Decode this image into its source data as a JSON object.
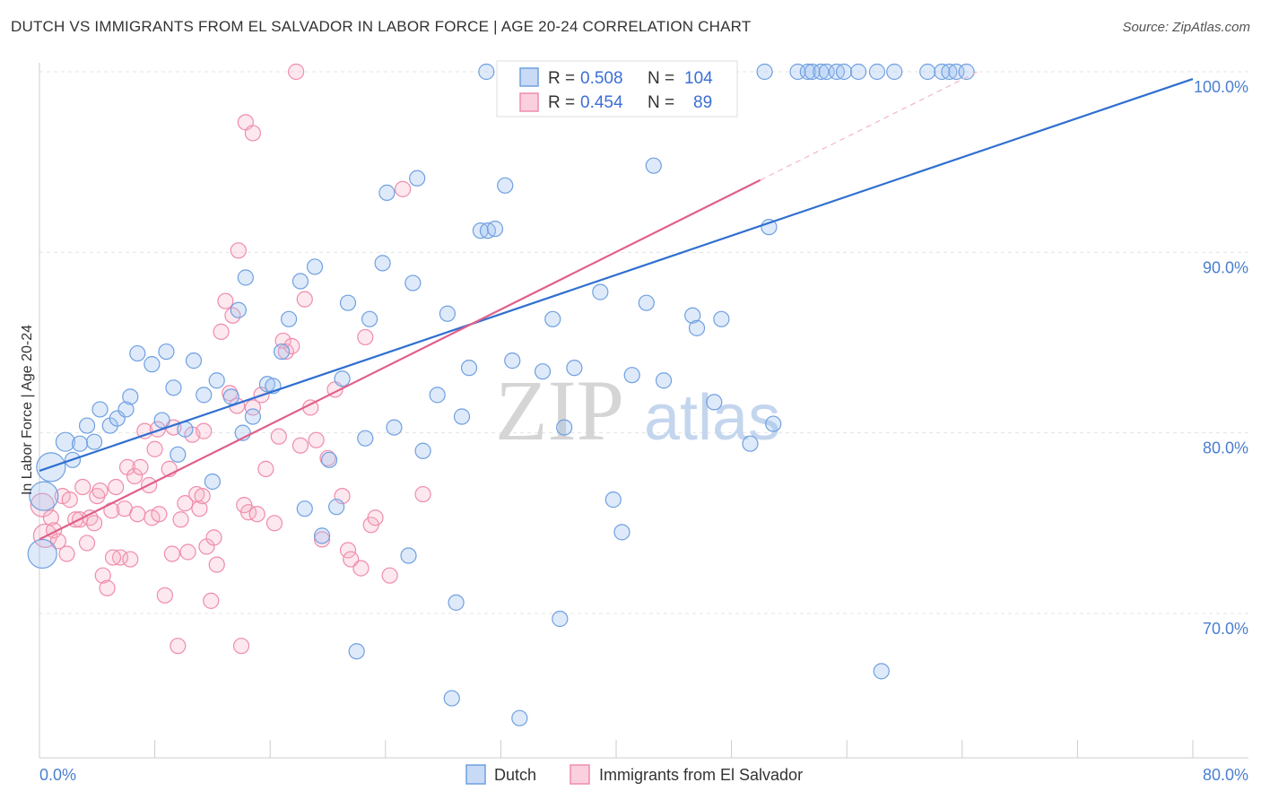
{
  "title": "DUTCH VS IMMIGRANTS FROM EL SALVADOR IN LABOR FORCE | AGE 20-24 CORRELATION CHART",
  "source": "Source: ZipAtlas.com",
  "watermark": {
    "zip": "ZIP",
    "atlas": "atlas"
  },
  "colors": {
    "dutch": "#6fa0e0",
    "salvador": "#f08cab",
    "dutch_line": "#2f6fd0",
    "salvador_line": "#e0608a",
    "axis_text": "#4a7fd0"
  },
  "legend": {
    "rows": [
      {
        "r_label": "R = ",
        "r_value": "0.508",
        "n_label": "N = ",
        "n_value": "104"
      },
      {
        "r_label": "R = ",
        "r_value": "0.454",
        "n_label": "N = ",
        "n_value": "89"
      }
    ]
  },
  "chart_data": {
    "type": "scatter",
    "title": "DUTCH VS IMMIGRANTS FROM EL SALVADOR IN LABOR FORCE | AGE 20-24 CORRELATION CHART",
    "xlabel": "",
    "ylabel": "In Labor Force | Age 20-24",
    "xlim": [
      0,
      80
    ],
    "ylim": [
      62,
      100
    ],
    "x_tick_labels": [
      "0.0%",
      "80.0%"
    ],
    "y_ticks": [
      70,
      80,
      90,
      100
    ],
    "y_tick_labels": [
      "70.0%",
      "80.0%",
      "90.0%",
      "100.0%"
    ],
    "grid": true,
    "legend_position": "top-center",
    "series": [
      {
        "name": "Dutch",
        "color": "#6fa0e0",
        "r": 0.508,
        "n": 104,
        "trend": {
          "x": [
            0,
            80
          ],
          "y": [
            77.9,
            99.6
          ]
        },
        "points": [
          [
            0.2,
            73.3
          ],
          [
            0.3,
            76.5
          ],
          [
            0.8,
            78.1
          ],
          [
            1.8,
            79.5
          ],
          [
            2.3,
            78.5
          ],
          [
            2.8,
            79.4
          ],
          [
            3.3,
            80.4
          ],
          [
            3.8,
            79.5
          ],
          [
            4.2,
            81.3
          ],
          [
            4.9,
            80.4
          ],
          [
            5.4,
            80.8
          ],
          [
            6.0,
            81.3
          ],
          [
            6.3,
            82.0
          ],
          [
            6.8,
            84.4
          ],
          [
            7.8,
            83.8
          ],
          [
            8.5,
            80.7
          ],
          [
            8.8,
            84.5
          ],
          [
            9.3,
            82.5
          ],
          [
            9.6,
            78.8
          ],
          [
            10.1,
            80.2
          ],
          [
            10.7,
            84.0
          ],
          [
            11.4,
            82.1
          ],
          [
            12.0,
            77.3
          ],
          [
            12.3,
            82.9
          ],
          [
            13.3,
            82.0
          ],
          [
            13.8,
            86.8
          ],
          [
            14.1,
            80.0
          ],
          [
            14.3,
            88.6
          ],
          [
            14.8,
            80.9
          ],
          [
            15.8,
            82.7
          ],
          [
            16.2,
            82.6
          ],
          [
            16.8,
            84.5
          ],
          [
            17.3,
            86.3
          ],
          [
            18.1,
            88.4
          ],
          [
            18.4,
            75.8
          ],
          [
            19.1,
            89.2
          ],
          [
            19.6,
            74.3
          ],
          [
            20.1,
            78.5
          ],
          [
            20.6,
            75.9
          ],
          [
            21.0,
            83.0
          ],
          [
            21.4,
            87.2
          ],
          [
            22.0,
            67.9
          ],
          [
            22.6,
            79.7
          ],
          [
            22.9,
            86.3
          ],
          [
            23.8,
            89.4
          ],
          [
            24.1,
            93.3
          ],
          [
            24.6,
            80.3
          ],
          [
            25.6,
            73.2
          ],
          [
            25.9,
            88.3
          ],
          [
            26.2,
            94.1
          ],
          [
            26.6,
            79.0
          ],
          [
            27.6,
            82.1
          ],
          [
            28.3,
            86.6
          ],
          [
            28.6,
            65.3
          ],
          [
            28.9,
            70.6
          ],
          [
            29.3,
            80.9
          ],
          [
            29.8,
            83.6
          ],
          [
            30.6,
            91.2
          ],
          [
            31.1,
            91.2
          ],
          [
            31.6,
            91.3
          ],
          [
            31.0,
            100.0
          ],
          [
            32.3,
            93.7
          ],
          [
            32.8,
            84.0
          ],
          [
            33.3,
            64.2
          ],
          [
            33.8,
            100.0
          ],
          [
            34.9,
            83.4
          ],
          [
            35.6,
            86.3
          ],
          [
            36.1,
            69.7
          ],
          [
            36.4,
            80.3
          ],
          [
            37.1,
            83.6
          ],
          [
            38.9,
            87.8
          ],
          [
            38.6,
            100.0
          ],
          [
            39.8,
            76.3
          ],
          [
            40.4,
            74.5
          ],
          [
            41.1,
            83.2
          ],
          [
            42.1,
            87.2
          ],
          [
            42.6,
            94.8
          ],
          [
            43.3,
            82.9
          ],
          [
            43.8,
            100.0
          ],
          [
            45.3,
            86.5
          ],
          [
            45.6,
            85.8
          ],
          [
            46.8,
            81.7
          ],
          [
            47.3,
            86.3
          ],
          [
            47.8,
            100.0
          ],
          [
            49.3,
            79.4
          ],
          [
            50.3,
            100.0
          ],
          [
            50.6,
            91.4
          ],
          [
            50.9,
            80.5
          ],
          [
            52.6,
            100.0
          ],
          [
            53.3,
            100.0
          ],
          [
            53.6,
            100.0
          ],
          [
            54.2,
            100.0
          ],
          [
            54.6,
            100.0
          ],
          [
            55.3,
            100.0
          ],
          [
            55.8,
            100.0
          ],
          [
            56.8,
            100.0
          ],
          [
            58.1,
            100.0
          ],
          [
            58.4,
            66.8
          ],
          [
            59.3,
            100.0
          ],
          [
            61.6,
            100.0
          ],
          [
            62.6,
            100.0
          ],
          [
            63.1,
            100.0
          ],
          [
            63.6,
            100.0
          ],
          [
            64.3,
            100.0
          ]
        ]
      },
      {
        "name": "Immigrants from El Salvador",
        "color": "#f08cab",
        "r": 0.454,
        "n": 89,
        "trend": {
          "x": [
            0,
            50
          ],
          "y": [
            74.1,
            94.0
          ]
        },
        "points": [
          [
            0.2,
            76.0
          ],
          [
            0.4,
            74.3
          ],
          [
            0.8,
            75.3
          ],
          [
            1.0,
            74.6
          ],
          [
            1.3,
            74.0
          ],
          [
            1.6,
            76.5
          ],
          [
            1.9,
            73.3
          ],
          [
            2.1,
            76.3
          ],
          [
            2.5,
            75.2
          ],
          [
            2.8,
            75.2
          ],
          [
            3.0,
            77.0
          ],
          [
            3.3,
            73.9
          ],
          [
            3.5,
            75.3
          ],
          [
            3.8,
            75.0
          ],
          [
            4.0,
            76.5
          ],
          [
            4.2,
            76.8
          ],
          [
            4.4,
            72.1
          ],
          [
            4.7,
            71.4
          ],
          [
            5.0,
            75.7
          ],
          [
            5.3,
            77.0
          ],
          [
            5.6,
            73.1
          ],
          [
            5.9,
            75.8
          ],
          [
            6.1,
            78.1
          ],
          [
            6.3,
            73.0
          ],
          [
            6.6,
            77.6
          ],
          [
            7.0,
            78.1
          ],
          [
            7.3,
            80.1
          ],
          [
            7.6,
            77.1
          ],
          [
            7.8,
            75.3
          ],
          [
            8.0,
            79.1
          ],
          [
            8.3,
            75.5
          ],
          [
            8.7,
            71.0
          ],
          [
            9.0,
            78.0
          ],
          [
            9.3,
            80.3
          ],
          [
            9.6,
            68.2
          ],
          [
            9.8,
            75.2
          ],
          [
            10.1,
            76.1
          ],
          [
            10.3,
            73.4
          ],
          [
            10.6,
            79.9
          ],
          [
            10.9,
            76.6
          ],
          [
            11.1,
            75.8
          ],
          [
            11.4,
            80.1
          ],
          [
            11.6,
            73.7
          ],
          [
            11.9,
            70.7
          ],
          [
            12.1,
            74.2
          ],
          [
            12.3,
            72.7
          ],
          [
            12.6,
            85.6
          ],
          [
            12.9,
            87.3
          ],
          [
            13.2,
            82.2
          ],
          [
            13.4,
            86.5
          ],
          [
            13.8,
            90.1
          ],
          [
            14.0,
            68.2
          ],
          [
            14.2,
            76.0
          ],
          [
            14.5,
            75.6
          ],
          [
            14.8,
            81.4
          ],
          [
            15.1,
            75.5
          ],
          [
            15.4,
            82.1
          ],
          [
            15.7,
            78.0
          ],
          [
            14.3,
            97.2
          ],
          [
            14.8,
            96.6
          ],
          [
            16.3,
            75.0
          ],
          [
            16.6,
            79.8
          ],
          [
            16.9,
            85.1
          ],
          [
            17.1,
            84.5
          ],
          [
            17.5,
            84.8
          ],
          [
            17.8,
            100.0
          ],
          [
            18.1,
            79.3
          ],
          [
            18.4,
            87.4
          ],
          [
            18.8,
            81.4
          ],
          [
            19.2,
            79.6
          ],
          [
            19.6,
            74.1
          ],
          [
            20.0,
            78.6
          ],
          [
            20.5,
            82.4
          ],
          [
            21.0,
            76.5
          ],
          [
            21.4,
            73.5
          ],
          [
            21.6,
            73.0
          ],
          [
            22.3,
            72.5
          ],
          [
            22.6,
            85.3
          ],
          [
            23.0,
            74.9
          ],
          [
            23.3,
            75.3
          ],
          [
            24.3,
            72.1
          ],
          [
            25.2,
            93.5
          ],
          [
            26.6,
            76.6
          ],
          [
            5.1,
            73.1
          ],
          [
            6.8,
            75.5
          ],
          [
            8.2,
            80.2
          ],
          [
            9.2,
            73.3
          ],
          [
            11.3,
            76.5
          ],
          [
            13.7,
            81.5
          ]
        ]
      }
    ]
  },
  "bottom_legend": [
    {
      "label": "Dutch"
    },
    {
      "label": "Immigrants from El Salvador"
    }
  ]
}
